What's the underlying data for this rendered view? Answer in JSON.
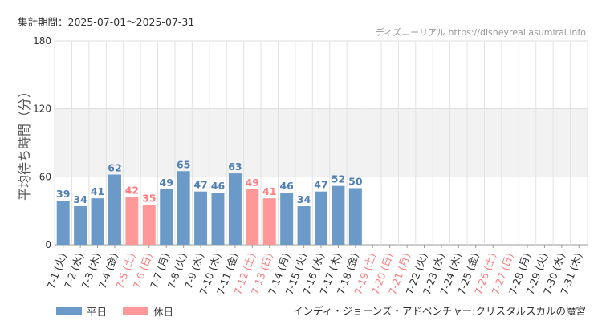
{
  "header": {
    "period": "集計期間：2025-07-01～2025-07-31",
    "brand": "ディズニーリアル https://disneyreal.asumirai.info"
  },
  "legend": {
    "weekday_label": "平日",
    "holiday_label": "休日"
  },
  "attraction": "インディ・ジョーンズ・アドベンチャー:クリスタルスカルの魔宮",
  "colors": {
    "weekday": "#6b9ac8",
    "holiday": "#ff9899",
    "weekday_text": "#5080b8",
    "holiday_text": "#ff7b7d",
    "band": "#f2f2f2"
  },
  "chart_data": {
    "type": "bar",
    "ylabel": "平均待ち時間（分）",
    "ylim": [
      0,
      180
    ],
    "yticks": [
      0,
      60,
      120,
      180
    ],
    "shaded_band": [
      60,
      120
    ],
    "categories": [
      "7-1 (火)",
      "7-2 (水)",
      "7-3 (木)",
      "7-4 (金)",
      "7-5 (土)",
      "7-6 (日)",
      "7-7 (月)",
      "7-8 (火)",
      "7-9 (水)",
      "7-10 (木)",
      "7-11 (金)",
      "7-12 (土)",
      "7-13 (日)",
      "7-14 (月)",
      "7-15 (火)",
      "7-16 (水)",
      "7-17 (木)",
      "7-18 (金)",
      "7-19 (土)",
      "7-20 (日)",
      "7-21 (月)",
      "7-22 (火)",
      "7-23 (水)",
      "7-24 (木)",
      "7-25 (金)",
      "7-26 (土)",
      "7-27 (日)",
      "7-28 (月)",
      "7-29 (火)",
      "7-30 (水)",
      "7-31 (木)"
    ],
    "values": [
      39,
      34,
      41,
      62,
      42,
      35,
      49,
      65,
      47,
      46,
      63,
      49,
      41,
      46,
      34,
      47,
      52,
      50,
      null,
      null,
      null,
      null,
      null,
      null,
      null,
      null,
      null,
      null,
      null,
      null,
      null
    ],
    "holiday": [
      false,
      false,
      false,
      false,
      true,
      true,
      false,
      false,
      false,
      false,
      false,
      true,
      true,
      false,
      false,
      false,
      false,
      false,
      true,
      true,
      true,
      false,
      false,
      false,
      false,
      true,
      true,
      false,
      false,
      false,
      false
    ],
    "series": [
      {
        "name": "平日"
      },
      {
        "name": "休日"
      }
    ]
  }
}
